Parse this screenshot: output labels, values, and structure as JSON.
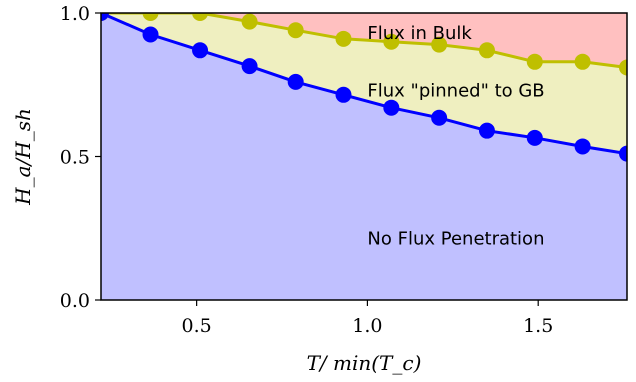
{
  "chart_data": {
    "type": "area",
    "xlabel": "T/ min(T_c)",
    "ylabel": "H_a/H_sh",
    "xlim": [
      0.22,
      1.76
    ],
    "ylim": [
      0.0,
      1.0
    ],
    "xticks": [
      0.5,
      1.0,
      1.5
    ],
    "yticks": [
      0.0,
      0.5,
      1.0
    ],
    "xtick_labels": [
      "0.5",
      "1.0",
      "1.5"
    ],
    "ytick_labels": [
      "0.0",
      "0.5",
      "1.0"
    ],
    "grid": false,
    "colors": {
      "bulk_region": "#ffc0c0",
      "pinned_region": "#efefc0",
      "no_penetration_region": "#c0c0ff",
      "pinned_boundary": "#bfbf00",
      "penetration_boundary": "#0000ff"
    },
    "series": [
      {
        "x": [
          0.22,
          0.365,
          0.51,
          0.655,
          0.79,
          0.93,
          1.07,
          1.21,
          1.35,
          1.49,
          1.63,
          1.76
        ],
        "y": [
          1.0,
          1.0,
          1.0,
          0.97,
          0.94,
          0.91,
          0.9,
          0.89,
          0.87,
          0.83,
          0.83,
          0.81
        ]
      },
      {
        "x": [
          0.22,
          0.365,
          0.51,
          0.655,
          0.79,
          0.93,
          1.07,
          1.21,
          1.35,
          1.49,
          1.63,
          1.76
        ],
        "y": [
          1.0,
          0.925,
          0.87,
          0.815,
          0.76,
          0.715,
          0.67,
          0.635,
          0.59,
          0.565,
          0.535,
          0.51
        ]
      }
    ],
    "annotations": [
      {
        "text": "Flux in Bulk",
        "x": 1.0,
        "y": 0.93
      },
      {
        "text": "Flux \"pinned\" to GB",
        "x": 1.0,
        "y": 0.73
      },
      {
        "text": "No Flux Penetration",
        "x": 1.0,
        "y": 0.215
      }
    ]
  }
}
